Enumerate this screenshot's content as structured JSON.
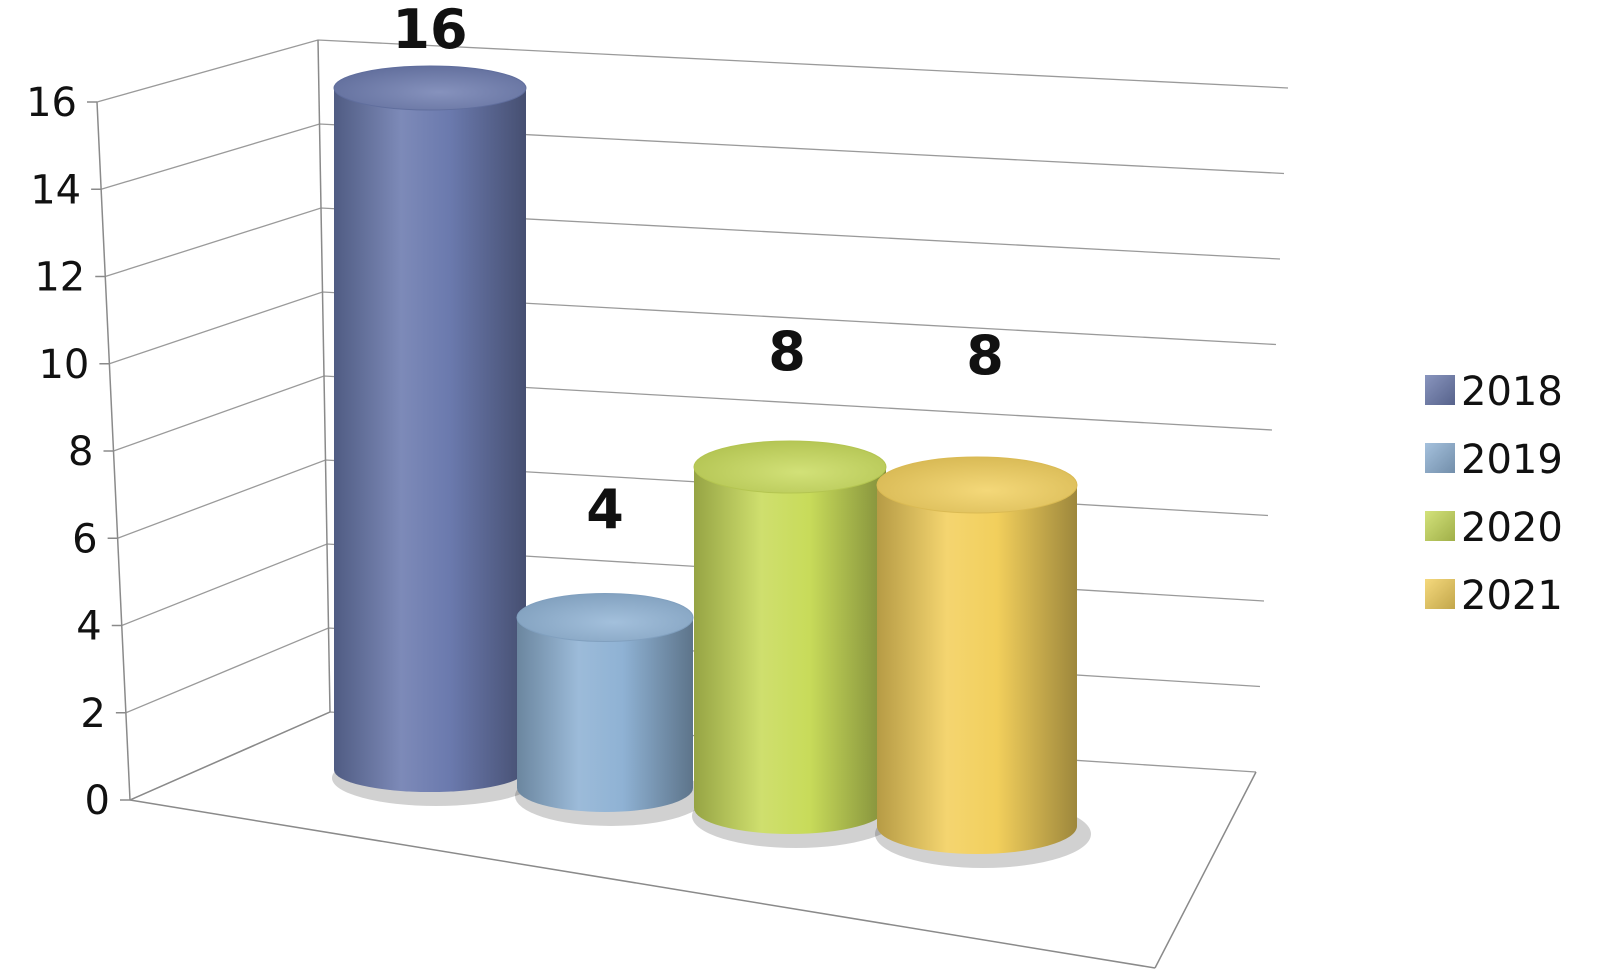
{
  "chart_data": {
    "type": "bar",
    "style": "3d-cylinder",
    "categories": [
      ""
    ],
    "series": [
      {
        "name": "2018",
        "values": [
          16
        ],
        "color": "#6b7aae"
      },
      {
        "name": "2019",
        "values": [
          4
        ],
        "color": "#8fb2d4"
      },
      {
        "name": "2020",
        "values": [
          8
        ],
        "color": "#c8db5a"
      },
      {
        "name": "2021",
        "values": [
          8
        ],
        "color": "#f2cf5c"
      }
    ],
    "data_labels": [
      "16",
      "4",
      "8",
      "8"
    ],
    "y_ticks": [
      "0",
      "2",
      "4",
      "6",
      "8",
      "10",
      "12",
      "14",
      "16"
    ],
    "ylim": [
      0,
      16
    ],
    "grid": true,
    "legend_position": "right",
    "title": "",
    "xlabel": "",
    "ylabel": ""
  }
}
